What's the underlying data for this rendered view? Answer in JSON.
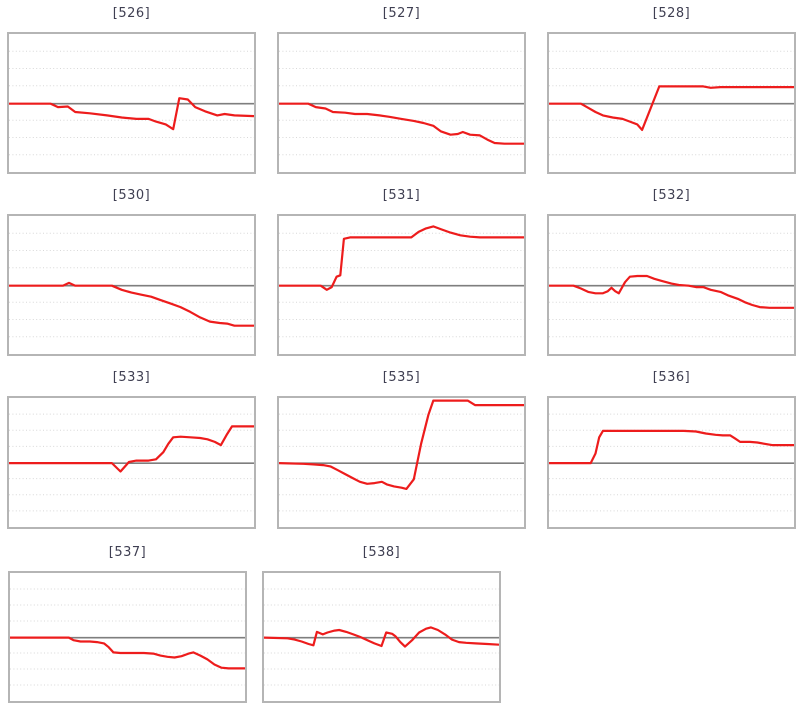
{
  "style": {
    "background": "#ffffff",
    "line_color": "#ed1c1c",
    "zero_line_color": "#7e7e7e",
    "grid_color": "#d8d8d8",
    "border_color": "#b5b5b5",
    "title_color": "#3f3f52"
  },
  "chart_data": [
    {
      "id": "526",
      "title": "[526]",
      "type": "line",
      "xlabel": "",
      "ylabel": "",
      "x_range": [
        0,
        1
      ],
      "ylim": [
        -1,
        1
      ],
      "grid": true,
      "zero_line": true,
      "y_unit": "fraction of plot half-height above zero line",
      "points": [
        [
          0,
          0
        ],
        [
          0.17,
          0
        ],
        [
          0.2,
          -0.05
        ],
        [
          0.24,
          -0.04
        ],
        [
          0.27,
          -0.12
        ],
        [
          0.33,
          -0.14
        ],
        [
          0.4,
          -0.17
        ],
        [
          0.46,
          -0.2
        ],
        [
          0.52,
          -0.22
        ],
        [
          0.57,
          -0.22
        ],
        [
          0.6,
          -0.26
        ],
        [
          0.64,
          -0.3
        ],
        [
          0.67,
          -0.37
        ],
        [
          0.695,
          0.08
        ],
        [
          0.73,
          0.06
        ],
        [
          0.76,
          -0.05
        ],
        [
          0.8,
          -0.11
        ],
        [
          0.85,
          -0.17
        ],
        [
          0.88,
          -0.15
        ],
        [
          0.92,
          -0.17
        ],
        [
          1,
          -0.18
        ]
      ]
    },
    {
      "id": "527",
      "title": "[527]",
      "type": "line",
      "xlabel": "",
      "ylabel": "",
      "x_range": [
        0,
        1
      ],
      "ylim": [
        -1,
        1
      ],
      "grid": true,
      "zero_line": true,
      "y_unit": "fraction of plot half-height above zero line",
      "points": [
        [
          0,
          0
        ],
        [
          0.12,
          0
        ],
        [
          0.15,
          -0.05
        ],
        [
          0.19,
          -0.07
        ],
        [
          0.22,
          -0.12
        ],
        [
          0.27,
          -0.13
        ],
        [
          0.31,
          -0.15
        ],
        [
          0.36,
          -0.15
        ],
        [
          0.41,
          -0.17
        ],
        [
          0.45,
          -0.19
        ],
        [
          0.5,
          -0.22
        ],
        [
          0.55,
          -0.25
        ],
        [
          0.59,
          -0.28
        ],
        [
          0.63,
          -0.32
        ],
        [
          0.66,
          -0.4
        ],
        [
          0.7,
          -0.45
        ],
        [
          0.73,
          -0.44
        ],
        [
          0.75,
          -0.41
        ],
        [
          0.78,
          -0.45
        ],
        [
          0.82,
          -0.46
        ],
        [
          0.85,
          -0.52
        ],
        [
          0.88,
          -0.57
        ],
        [
          0.92,
          -0.58
        ],
        [
          1,
          -0.58
        ]
      ]
    },
    {
      "id": "528",
      "title": "[528]",
      "type": "line",
      "xlabel": "",
      "ylabel": "",
      "x_range": [
        0,
        1
      ],
      "ylim": [
        -1,
        1
      ],
      "grid": true,
      "zero_line": true,
      "y_unit": "fraction of plot half-height above zero line",
      "points": [
        [
          0,
          0
        ],
        [
          0.13,
          0
        ],
        [
          0.16,
          -0.06
        ],
        [
          0.19,
          -0.12
        ],
        [
          0.22,
          -0.17
        ],
        [
          0.26,
          -0.2
        ],
        [
          0.3,
          -0.22
        ],
        [
          0.33,
          -0.26
        ],
        [
          0.36,
          -0.3
        ],
        [
          0.38,
          -0.38
        ],
        [
          0.45,
          0.25
        ],
        [
          0.63,
          0.25
        ],
        [
          0.66,
          0.23
        ],
        [
          0.7,
          0.24
        ],
        [
          1,
          0.24
        ]
      ]
    },
    {
      "id": "530",
      "title": "[530]",
      "type": "line",
      "xlabel": "",
      "ylabel": "",
      "x_range": [
        0,
        1
      ],
      "ylim": [
        -1,
        1
      ],
      "grid": true,
      "zero_line": true,
      "y_unit": "fraction of plot half-height above zero line",
      "points": [
        [
          0,
          0
        ],
        [
          0.22,
          0
        ],
        [
          0.245,
          0.04
        ],
        [
          0.27,
          0
        ],
        [
          0.42,
          0
        ],
        [
          0.46,
          -0.06
        ],
        [
          0.5,
          -0.1
        ],
        [
          0.54,
          -0.13
        ],
        [
          0.58,
          -0.16
        ],
        [
          0.62,
          -0.21
        ],
        [
          0.66,
          -0.26
        ],
        [
          0.7,
          -0.31
        ],
        [
          0.74,
          -0.38
        ],
        [
          0.78,
          -0.46
        ],
        [
          0.82,
          -0.52
        ],
        [
          0.86,
          -0.54
        ],
        [
          0.89,
          -0.55
        ],
        [
          0.92,
          -0.58
        ],
        [
          1,
          -0.58
        ]
      ]
    },
    {
      "id": "531",
      "title": "[531]",
      "type": "line",
      "xlabel": "",
      "ylabel": "",
      "x_range": [
        0,
        1
      ],
      "ylim": [
        -1,
        1
      ],
      "grid": true,
      "zero_line": true,
      "y_unit": "fraction of plot half-height above zero line",
      "points": [
        [
          0,
          0
        ],
        [
          0.17,
          0
        ],
        [
          0.195,
          -0.06
        ],
        [
          0.215,
          -0.02
        ],
        [
          0.235,
          0.13
        ],
        [
          0.25,
          0.15
        ],
        [
          0.265,
          0.68
        ],
        [
          0.29,
          0.7
        ],
        [
          0.54,
          0.7
        ],
        [
          0.57,
          0.78
        ],
        [
          0.6,
          0.83
        ],
        [
          0.63,
          0.86
        ],
        [
          0.66,
          0.82
        ],
        [
          0.7,
          0.77
        ],
        [
          0.74,
          0.73
        ],
        [
          0.78,
          0.71
        ],
        [
          0.82,
          0.7
        ],
        [
          1,
          0.7
        ]
      ]
    },
    {
      "id": "532",
      "title": "[532]",
      "type": "line",
      "xlabel": "",
      "ylabel": "",
      "x_range": [
        0,
        1
      ],
      "ylim": [
        -1,
        1
      ],
      "grid": true,
      "zero_line": true,
      "y_unit": "fraction of plot half-height above zero line",
      "points": [
        [
          0,
          0
        ],
        [
          0.1,
          0
        ],
        [
          0.13,
          -0.04
        ],
        [
          0.16,
          -0.09
        ],
        [
          0.19,
          -0.11
        ],
        [
          0.22,
          -0.11
        ],
        [
          0.24,
          -0.08
        ],
        [
          0.255,
          -0.03
        ],
        [
          0.27,
          -0.08
        ],
        [
          0.285,
          -0.11
        ],
        [
          0.31,
          0.05
        ],
        [
          0.33,
          0.13
        ],
        [
          0.36,
          0.14
        ],
        [
          0.4,
          0.14
        ],
        [
          0.43,
          0.1
        ],
        [
          0.46,
          0.07
        ],
        [
          0.5,
          0.03
        ],
        [
          0.53,
          0.01
        ],
        [
          0.57,
          0
        ],
        [
          0.6,
          -0.02
        ],
        [
          0.63,
          -0.02
        ],
        [
          0.66,
          -0.06
        ],
        [
          0.7,
          -0.09
        ],
        [
          0.73,
          -0.14
        ],
        [
          0.77,
          -0.19
        ],
        [
          0.8,
          -0.24
        ],
        [
          0.83,
          -0.28
        ],
        [
          0.86,
          -0.31
        ],
        [
          0.9,
          -0.32
        ],
        [
          1,
          -0.32
        ]
      ]
    },
    {
      "id": "533",
      "title": "[533]",
      "type": "line",
      "xlabel": "",
      "ylabel": "",
      "x_range": [
        0,
        1
      ],
      "ylim": [
        -1,
        1
      ],
      "grid": true,
      "zero_line": true,
      "y_unit": "fraction of plot half-height above zero line",
      "points": [
        [
          0,
          0
        ],
        [
          0.42,
          0
        ],
        [
          0.455,
          -0.13
        ],
        [
          0.49,
          0.02
        ],
        [
          0.52,
          0.04
        ],
        [
          0.57,
          0.04
        ],
        [
          0.6,
          0.06
        ],
        [
          0.63,
          0.17
        ],
        [
          0.65,
          0.3
        ],
        [
          0.67,
          0.4
        ],
        [
          0.7,
          0.41
        ],
        [
          0.74,
          0.4
        ],
        [
          0.78,
          0.39
        ],
        [
          0.81,
          0.37
        ],
        [
          0.84,
          0.33
        ],
        [
          0.865,
          0.28
        ],
        [
          0.89,
          0.45
        ],
        [
          0.91,
          0.57
        ],
        [
          0.94,
          0.57
        ],
        [
          1,
          0.57
        ]
      ]
    },
    {
      "id": "535",
      "title": "[535]",
      "type": "line",
      "xlabel": "",
      "ylabel": "",
      "x_range": [
        0,
        1
      ],
      "ylim": [
        -1,
        1
      ],
      "grid": true,
      "zero_line": true,
      "y_unit": "fraction of plot half-height above zero line",
      "points": [
        [
          0,
          0
        ],
        [
          0.1,
          -0.01
        ],
        [
          0.14,
          -0.02
        ],
        [
          0.18,
          -0.03
        ],
        [
          0.21,
          -0.05
        ],
        [
          0.24,
          -0.11
        ],
        [
          0.27,
          -0.17
        ],
        [
          0.3,
          -0.23
        ],
        [
          0.33,
          -0.29
        ],
        [
          0.36,
          -0.32
        ],
        [
          0.39,
          -0.31
        ],
        [
          0.42,
          -0.29
        ],
        [
          0.44,
          -0.33
        ],
        [
          0.47,
          -0.36
        ],
        [
          0.5,
          -0.38
        ],
        [
          0.52,
          -0.4
        ],
        [
          0.55,
          -0.25
        ],
        [
          0.58,
          0.3
        ],
        [
          0.61,
          0.75
        ],
        [
          0.63,
          0.97
        ],
        [
          0.77,
          0.97
        ],
        [
          0.8,
          0.9
        ],
        [
          1,
          0.9
        ]
      ]
    },
    {
      "id": "536",
      "title": "[536]",
      "type": "line",
      "xlabel": "",
      "ylabel": "",
      "x_range": [
        0,
        1
      ],
      "ylim": [
        -1,
        1
      ],
      "grid": true,
      "zero_line": true,
      "y_unit": "fraction of plot half-height above zero line",
      "points": [
        [
          0,
          0
        ],
        [
          0.17,
          0
        ],
        [
          0.19,
          0.15
        ],
        [
          0.205,
          0.4
        ],
        [
          0.22,
          0.5
        ],
        [
          0.55,
          0.5
        ],
        [
          0.6,
          0.49
        ],
        [
          0.64,
          0.46
        ],
        [
          0.68,
          0.44
        ],
        [
          0.71,
          0.43
        ],
        [
          0.74,
          0.43
        ],
        [
          0.76,
          0.38
        ],
        [
          0.78,
          0.33
        ],
        [
          0.82,
          0.33
        ],
        [
          0.85,
          0.32
        ],
        [
          0.88,
          0.3
        ],
        [
          0.91,
          0.28
        ],
        [
          1,
          0.28
        ]
      ]
    },
    {
      "id": "537",
      "title": "[537]",
      "type": "line",
      "xlabel": "",
      "ylabel": "",
      "x_range": [
        0,
        1
      ],
      "ylim": [
        -1,
        1
      ],
      "grid": true,
      "zero_line": true,
      "y_unit": "fraction of plot half-height above zero line",
      "points": [
        [
          0,
          0
        ],
        [
          0.25,
          0
        ],
        [
          0.27,
          -0.04
        ],
        [
          0.3,
          -0.06
        ],
        [
          0.34,
          -0.06
        ],
        [
          0.37,
          -0.07
        ],
        [
          0.4,
          -0.09
        ],
        [
          0.42,
          -0.15
        ],
        [
          0.44,
          -0.23
        ],
        [
          0.47,
          -0.24
        ],
        [
          0.52,
          -0.24
        ],
        [
          0.57,
          -0.24
        ],
        [
          0.61,
          -0.25
        ],
        [
          0.64,
          -0.28
        ],
        [
          0.67,
          -0.3
        ],
        [
          0.7,
          -0.31
        ],
        [
          0.73,
          -0.29
        ],
        [
          0.76,
          -0.25
        ],
        [
          0.78,
          -0.23
        ],
        [
          0.81,
          -0.28
        ],
        [
          0.84,
          -0.34
        ],
        [
          0.87,
          -0.42
        ],
        [
          0.9,
          -0.47
        ],
        [
          0.93,
          -0.48
        ],
        [
          1,
          -0.48
        ]
      ]
    },
    {
      "id": "538",
      "title": "[538]",
      "type": "line",
      "xlabel": "",
      "ylabel": "",
      "x_range": [
        0,
        1
      ],
      "ylim": [
        -1,
        1
      ],
      "grid": true,
      "zero_line": true,
      "y_unit": "fraction of plot half-height above zero line",
      "points": [
        [
          0,
          0
        ],
        [
          0.1,
          -0.01
        ],
        [
          0.13,
          -0.03
        ],
        [
          0.16,
          -0.06
        ],
        [
          0.19,
          -0.1
        ],
        [
          0.21,
          -0.12
        ],
        [
          0.225,
          0.09
        ],
        [
          0.25,
          0.05
        ],
        [
          0.27,
          0.08
        ],
        [
          0.3,
          0.11
        ],
        [
          0.32,
          0.12
        ],
        [
          0.35,
          0.09
        ],
        [
          0.38,
          0.05
        ],
        [
          0.41,
          0.01
        ],
        [
          0.44,
          -0.04
        ],
        [
          0.47,
          -0.09
        ],
        [
          0.5,
          -0.13
        ],
        [
          0.52,
          0.08
        ],
        [
          0.545,
          0.06
        ],
        [
          0.56,
          0.02
        ],
        [
          0.58,
          -0.07
        ],
        [
          0.6,
          -0.14
        ],
        [
          0.63,
          -0.04
        ],
        [
          0.66,
          0.08
        ],
        [
          0.69,
          0.14
        ],
        [
          0.71,
          0.16
        ],
        [
          0.74,
          0.12
        ],
        [
          0.77,
          0.05
        ],
        [
          0.8,
          -0.03
        ],
        [
          0.83,
          -0.07
        ],
        [
          0.86,
          -0.08
        ],
        [
          0.9,
          -0.09
        ],
        [
          0.95,
          -0.1
        ],
        [
          1,
          -0.11
        ]
      ]
    }
  ]
}
